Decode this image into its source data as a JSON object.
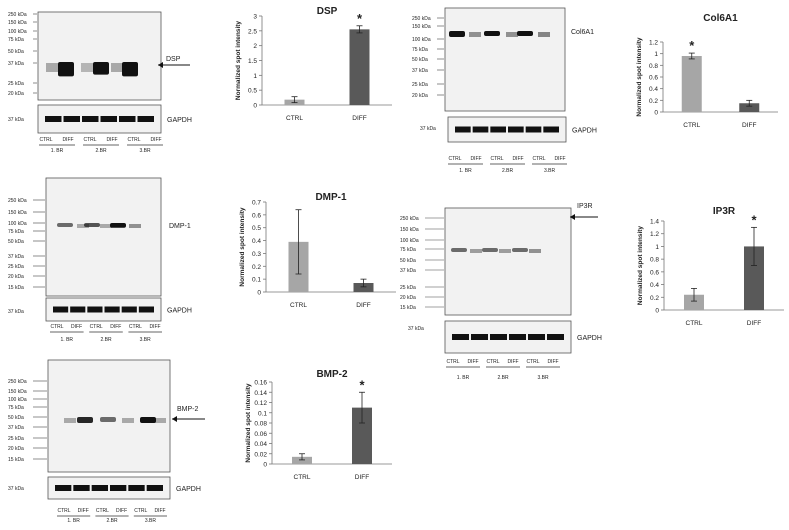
{
  "colors": {
    "ctrl_bar": "#a6a6a6",
    "diff_bar": "#595959",
    "blot_bg": "#f2f2f2",
    "band": "#111111"
  },
  "blots": [
    {
      "id": "dsp",
      "markers": [
        "250 kDa",
        "150 kDa",
        "100 kDa",
        "75 kDa",
        "50 kDa",
        "37 kDa",
        "25 kDa",
        "20 kDa"
      ],
      "label": "DSP",
      "gapdh_marker": "37 kDa",
      "gapdh_label": "GAPDH",
      "lanes": [
        "CTRL",
        "DIFF",
        "CTRL",
        "DIFF",
        "CTRL",
        "DIFF"
      ],
      "groups": [
        "1. BR",
        "2.BR",
        "3.BR"
      ]
    },
    {
      "id": "col6a1",
      "markers": [
        "250 kDa",
        "150 kDa",
        "100 kDa",
        "75 kDa",
        "50 kDa",
        "37 kDa",
        "25 kDa",
        "20 kDa"
      ],
      "label": "Col6A1",
      "gapdh_marker": "37 kDa",
      "gapdh_label": "GAPDH",
      "lanes": [
        "CTRL",
        "DIFF",
        "CTRL",
        "DIFF",
        "CTRL",
        "DIFF"
      ],
      "groups": [
        "1. BR",
        "2.BR",
        "3.BR"
      ]
    },
    {
      "id": "dmp1",
      "markers": [
        "250 kDa",
        "150 kDa",
        "100 kDa",
        "75 kDa",
        "50 kDa",
        "37 kDa",
        "25 kDa",
        "20 kDa",
        "15 kDa"
      ],
      "label": "DMP-1",
      "gapdh_marker": "37 kDa",
      "gapdh_label": "GAPDH",
      "lanes": [
        "CTRL",
        "DIFF",
        "CTRL",
        "DIFF",
        "CTRL",
        "DIFF"
      ],
      "groups": [
        "1. BR",
        "2.BR",
        "3.BR"
      ]
    },
    {
      "id": "ip3r",
      "markers": [
        "250 kDa",
        "150 kDa",
        "100 kDa",
        "75 kDa",
        "50 kDa",
        "37 kDa",
        "25 kDa",
        "20 kDa",
        "15 kDa"
      ],
      "label": "IP3R",
      "gapdh_marker": "37 kDa",
      "gapdh_label": "GAPDH",
      "lanes": [
        "CTRL",
        "DIFF",
        "CTRL",
        "DIFF",
        "CTRL",
        "DIFF"
      ],
      "groups": [
        "1. BR",
        "2.BR",
        "3.BR"
      ]
    },
    {
      "id": "bmp2",
      "markers": [
        "250 kDa",
        "150 kDa",
        "100 kDa",
        "75 kDa",
        "50 kDa",
        "37 kDa",
        "25 kDa",
        "20 kDa",
        "15 kDa"
      ],
      "label": "BMP-2",
      "gapdh_marker": "37 kDa",
      "gapdh_label": "GAPDH",
      "lanes": [
        "CTRL",
        "DIFF",
        "CTRL",
        "DIFF",
        "CTRL",
        "DIFF"
      ],
      "groups": [
        "1. BR",
        "2.BR",
        "3.BR"
      ]
    }
  ],
  "chart_data": [
    {
      "id": "dsp",
      "type": "bar",
      "title": "DSP",
      "ylabel": "Normalized spot intensity",
      "xlabel": "",
      "categories": [
        "CTRL",
        "DIFF"
      ],
      "values": [
        0.18,
        2.55
      ],
      "errors": [
        0.1,
        0.12
      ],
      "ylim": [
        0,
        3
      ],
      "ticks": [
        "0",
        "0.5",
        "1",
        "1.5",
        "2",
        "2.5",
        "3"
      ],
      "significance": [
        "",
        "*"
      ],
      "grid": false
    },
    {
      "id": "col6a1",
      "type": "bar",
      "title": "Col6A1",
      "ylabel": "Normalized spot intensity",
      "xlabel": "",
      "categories": [
        "CTRL",
        "DIFF"
      ],
      "values": [
        0.96,
        0.15
      ],
      "errors": [
        0.05,
        0.05
      ],
      "ylim": [
        0,
        1.2
      ],
      "ticks": [
        "0",
        "0.2",
        "0.4",
        "0.6",
        "0.8",
        "1",
        "1.2"
      ],
      "significance": [
        "*",
        ""
      ],
      "grid": false
    },
    {
      "id": "dmp1",
      "type": "bar",
      "title": "DMP-1",
      "ylabel": "Normalized spot intensity",
      "xlabel": "",
      "categories": [
        "CTRL",
        "DIFF"
      ],
      "values": [
        0.39,
        0.07
      ],
      "errors": [
        0.25,
        0.03
      ],
      "ylim": [
        0,
        0.7
      ],
      "ticks": [
        "0",
        "0.1",
        "0.2",
        "0.3",
        "0.4",
        "0.5",
        "0.6",
        "0.7"
      ],
      "significance": [
        "",
        ""
      ],
      "grid": false
    },
    {
      "id": "ip3r",
      "type": "bar",
      "title": "IP3R",
      "ylabel": "Normalized spot intensity",
      "xlabel": "",
      "categories": [
        "CTRL",
        "DIFF"
      ],
      "values": [
        0.24,
        1.0
      ],
      "errors": [
        0.1,
        0.3
      ],
      "ylim": [
        0,
        1.4
      ],
      "ticks": [
        "0",
        "0.2",
        "0.4",
        "0.6",
        "0.8",
        "1",
        "1.2",
        "1.4"
      ],
      "significance": [
        "",
        "*"
      ],
      "grid": false
    },
    {
      "id": "bmp2",
      "type": "bar",
      "title": "BMP-2",
      "ylabel": "Normalized spot intensity",
      "xlabel": "",
      "categories": [
        "CTRL",
        "DIFF"
      ],
      "values": [
        0.014,
        0.11
      ],
      "errors": [
        0.006,
        0.03
      ],
      "ylim": [
        0,
        0.16
      ],
      "ticks": [
        "0",
        "0.02",
        "0.04",
        "0.06",
        "0.08",
        "0.1",
        "0.12",
        "0.14",
        "0.16"
      ],
      "significance": [
        "",
        "*"
      ],
      "grid": false
    }
  ]
}
